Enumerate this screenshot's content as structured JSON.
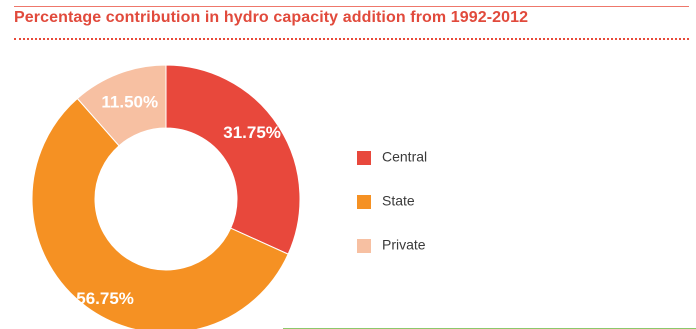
{
  "title": "Percentage contribution in hydro capacity addition from 1992-2012",
  "chart_data": {
    "type": "pie",
    "donut": true,
    "title": "Percentage contribution in hydro capacity addition from 1992-2012",
    "legend_position": "right",
    "categories": [
      "Central",
      "State",
      "Private"
    ],
    "values": [
      31.75,
      56.75,
      11.5
    ],
    "data_labels": [
      "31.75%",
      "56.75%",
      "11.50%"
    ],
    "colors": [
      "#e8483c",
      "#f59123",
      "#f7c0a2"
    ],
    "start_angle_deg": 0,
    "direction": "clockwise"
  }
}
